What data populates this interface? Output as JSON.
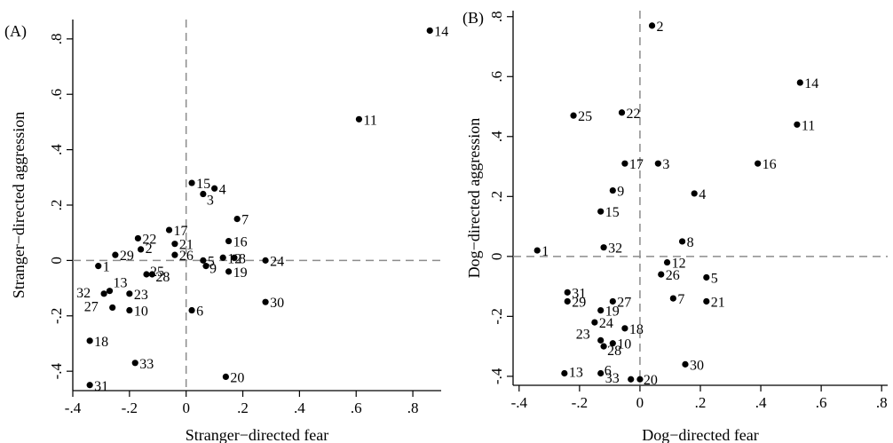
{
  "chart_data": [
    {
      "type": "scatter",
      "panel_label": "(A)",
      "title": "",
      "xlabel": "Stranger−directed fear",
      "ylabel": "Stranger−directed aggression",
      "xlim": [
        -0.4,
        0.9
      ],
      "ylim": [
        -0.47,
        0.87
      ],
      "xticks": [
        -0.4,
        -0.2,
        0,
        0.2,
        0.4,
        0.6,
        0.8
      ],
      "xtick_labels": [
        "-.4",
        "-.2",
        "0",
        ".2",
        ".4",
        ".6",
        ".8"
      ],
      "yticks": [
        -0.4,
        -0.2,
        0,
        0.2,
        0.4,
        0.6,
        0.8
      ],
      "ytick_labels": [
        "-.4",
        "-.2",
        "0",
        ".2",
        ".4",
        ".6",
        ".8"
      ],
      "reference_lines": {
        "x": 0,
        "y": 0,
        "style": "dashed"
      },
      "grid": false,
      "points": [
        {
          "label": "14",
          "x": 0.86,
          "y": 0.83
        },
        {
          "label": "11",
          "x": 0.61,
          "y": 0.51
        },
        {
          "label": "15",
          "x": 0.02,
          "y": 0.28
        },
        {
          "label": "4",
          "x": 0.1,
          "y": 0.26
        },
        {
          "label": "3",
          "x": 0.06,
          "y": 0.24
        },
        {
          "label": "7",
          "x": 0.18,
          "y": 0.15
        },
        {
          "label": "17",
          "x": -0.06,
          "y": 0.11
        },
        {
          "label": "22",
          "x": -0.17,
          "y": 0.08
        },
        {
          "label": "21",
          "x": -0.04,
          "y": 0.06
        },
        {
          "label": "16",
          "x": 0.15,
          "y": 0.07
        },
        {
          "label": "2",
          "x": -0.16,
          "y": 0.04
        },
        {
          "label": "29",
          "x": -0.25,
          "y": 0.02
        },
        {
          "label": "26",
          "x": -0.04,
          "y": 0.02
        },
        {
          "label": "12",
          "x": 0.13,
          "y": 0.01
        },
        {
          "label": "8",
          "x": 0.17,
          "y": 0.01
        },
        {
          "label": "5",
          "x": 0.06,
          "y": 0.0
        },
        {
          "label": "24",
          "x": 0.28,
          "y": 0.0
        },
        {
          "label": "1",
          "x": -0.31,
          "y": -0.02
        },
        {
          "label": "9",
          "x": 0.07,
          "y": -0.02
        },
        {
          "label": "19",
          "x": 0.15,
          "y": -0.04
        },
        {
          "label": "25",
          "x": -0.14,
          "y": -0.05
        },
        {
          "label": "28",
          "x": -0.12,
          "y": -0.05
        },
        {
          "label": "13",
          "x": -0.27,
          "y": -0.11
        },
        {
          "label": "32",
          "x": -0.29,
          "y": -0.12
        },
        {
          "label": "23",
          "x": -0.2,
          "y": -0.12
        },
        {
          "label": "30",
          "x": 0.28,
          "y": -0.15
        },
        {
          "label": "27",
          "x": -0.26,
          "y": -0.17
        },
        {
          "label": "10",
          "x": -0.2,
          "y": -0.18
        },
        {
          "label": "6",
          "x": 0.02,
          "y": -0.18
        },
        {
          "label": "18",
          "x": -0.34,
          "y": -0.29
        },
        {
          "label": "33",
          "x": -0.18,
          "y": -0.37
        },
        {
          "label": "20",
          "x": 0.14,
          "y": -0.42
        },
        {
          "label": "31",
          "x": -0.34,
          "y": -0.45
        }
      ]
    },
    {
      "type": "scatter",
      "panel_label": "(B)",
      "title": "",
      "xlabel": "Dog−directed fear",
      "ylabel": "Dog−directed aggression",
      "xlim": [
        -0.42,
        0.82
      ],
      "ylim": [
        -0.43,
        0.82
      ],
      "xticks": [
        -0.4,
        -0.2,
        0,
        0.2,
        0.4,
        0.6,
        0.8
      ],
      "xtick_labels": [
        "-.4",
        "-.2",
        "0",
        ".2",
        ".4",
        ".6",
        ".8"
      ],
      "yticks": [
        -0.4,
        -0.2,
        0,
        0.2,
        0.4,
        0.6,
        0.8
      ],
      "ytick_labels": [
        "-.4",
        "-.2",
        "0",
        ".2",
        ".4",
        ".6",
        ".8"
      ],
      "reference_lines": {
        "x": 0,
        "y": 0,
        "style": "dashed"
      },
      "grid": false,
      "points": [
        {
          "label": "2",
          "x": 0.04,
          "y": 0.77
        },
        {
          "label": "14",
          "x": 0.53,
          "y": 0.58
        },
        {
          "label": "25",
          "x": -0.22,
          "y": 0.47
        },
        {
          "label": "22",
          "x": -0.06,
          "y": 0.48
        },
        {
          "label": "11",
          "x": 0.52,
          "y": 0.44
        },
        {
          "label": "17",
          "x": -0.05,
          "y": 0.31
        },
        {
          "label": "3",
          "x": 0.06,
          "y": 0.31
        },
        {
          "label": "16",
          "x": 0.39,
          "y": 0.31
        },
        {
          "label": "9",
          "x": -0.09,
          "y": 0.22
        },
        {
          "label": "4",
          "x": 0.18,
          "y": 0.21
        },
        {
          "label": "15",
          "x": -0.13,
          "y": 0.15
        },
        {
          "label": "8",
          "x": 0.14,
          "y": 0.05
        },
        {
          "label": "1",
          "x": -0.34,
          "y": 0.02
        },
        {
          "label": "32",
          "x": -0.12,
          "y": 0.03
        },
        {
          "label": "12",
          "x": 0.09,
          "y": -0.02
        },
        {
          "label": "5",
          "x": 0.22,
          "y": -0.07
        },
        {
          "label": "26",
          "x": 0.07,
          "y": -0.06
        },
        {
          "label": "31",
          "x": -0.24,
          "y": -0.12
        },
        {
          "label": "27",
          "x": -0.09,
          "y": -0.15
        },
        {
          "label": "7",
          "x": 0.11,
          "y": -0.14
        },
        {
          "label": "21",
          "x": 0.22,
          "y": -0.15
        },
        {
          "label": "29",
          "x": -0.24,
          "y": -0.15
        },
        {
          "label": "19",
          "x": -0.13,
          "y": -0.18
        },
        {
          "label": "24",
          "x": -0.15,
          "y": -0.22
        },
        {
          "label": "18",
          "x": -0.05,
          "y": -0.24
        },
        {
          "label": "23",
          "x": -0.13,
          "y": -0.28
        },
        {
          "label": "10",
          "x": -0.09,
          "y": -0.29
        },
        {
          "label": "28",
          "x": -0.12,
          "y": -0.3
        },
        {
          "label": "30",
          "x": 0.15,
          "y": -0.36
        },
        {
          "label": "13",
          "x": -0.25,
          "y": -0.39
        },
        {
          "label": "6",
          "x": -0.13,
          "y": -0.39
        },
        {
          "label": "33",
          "x": -0.03,
          "y": -0.41
        },
        {
          "label": "20",
          "x": 0.0,
          "y": -0.41
        }
      ]
    }
  ]
}
